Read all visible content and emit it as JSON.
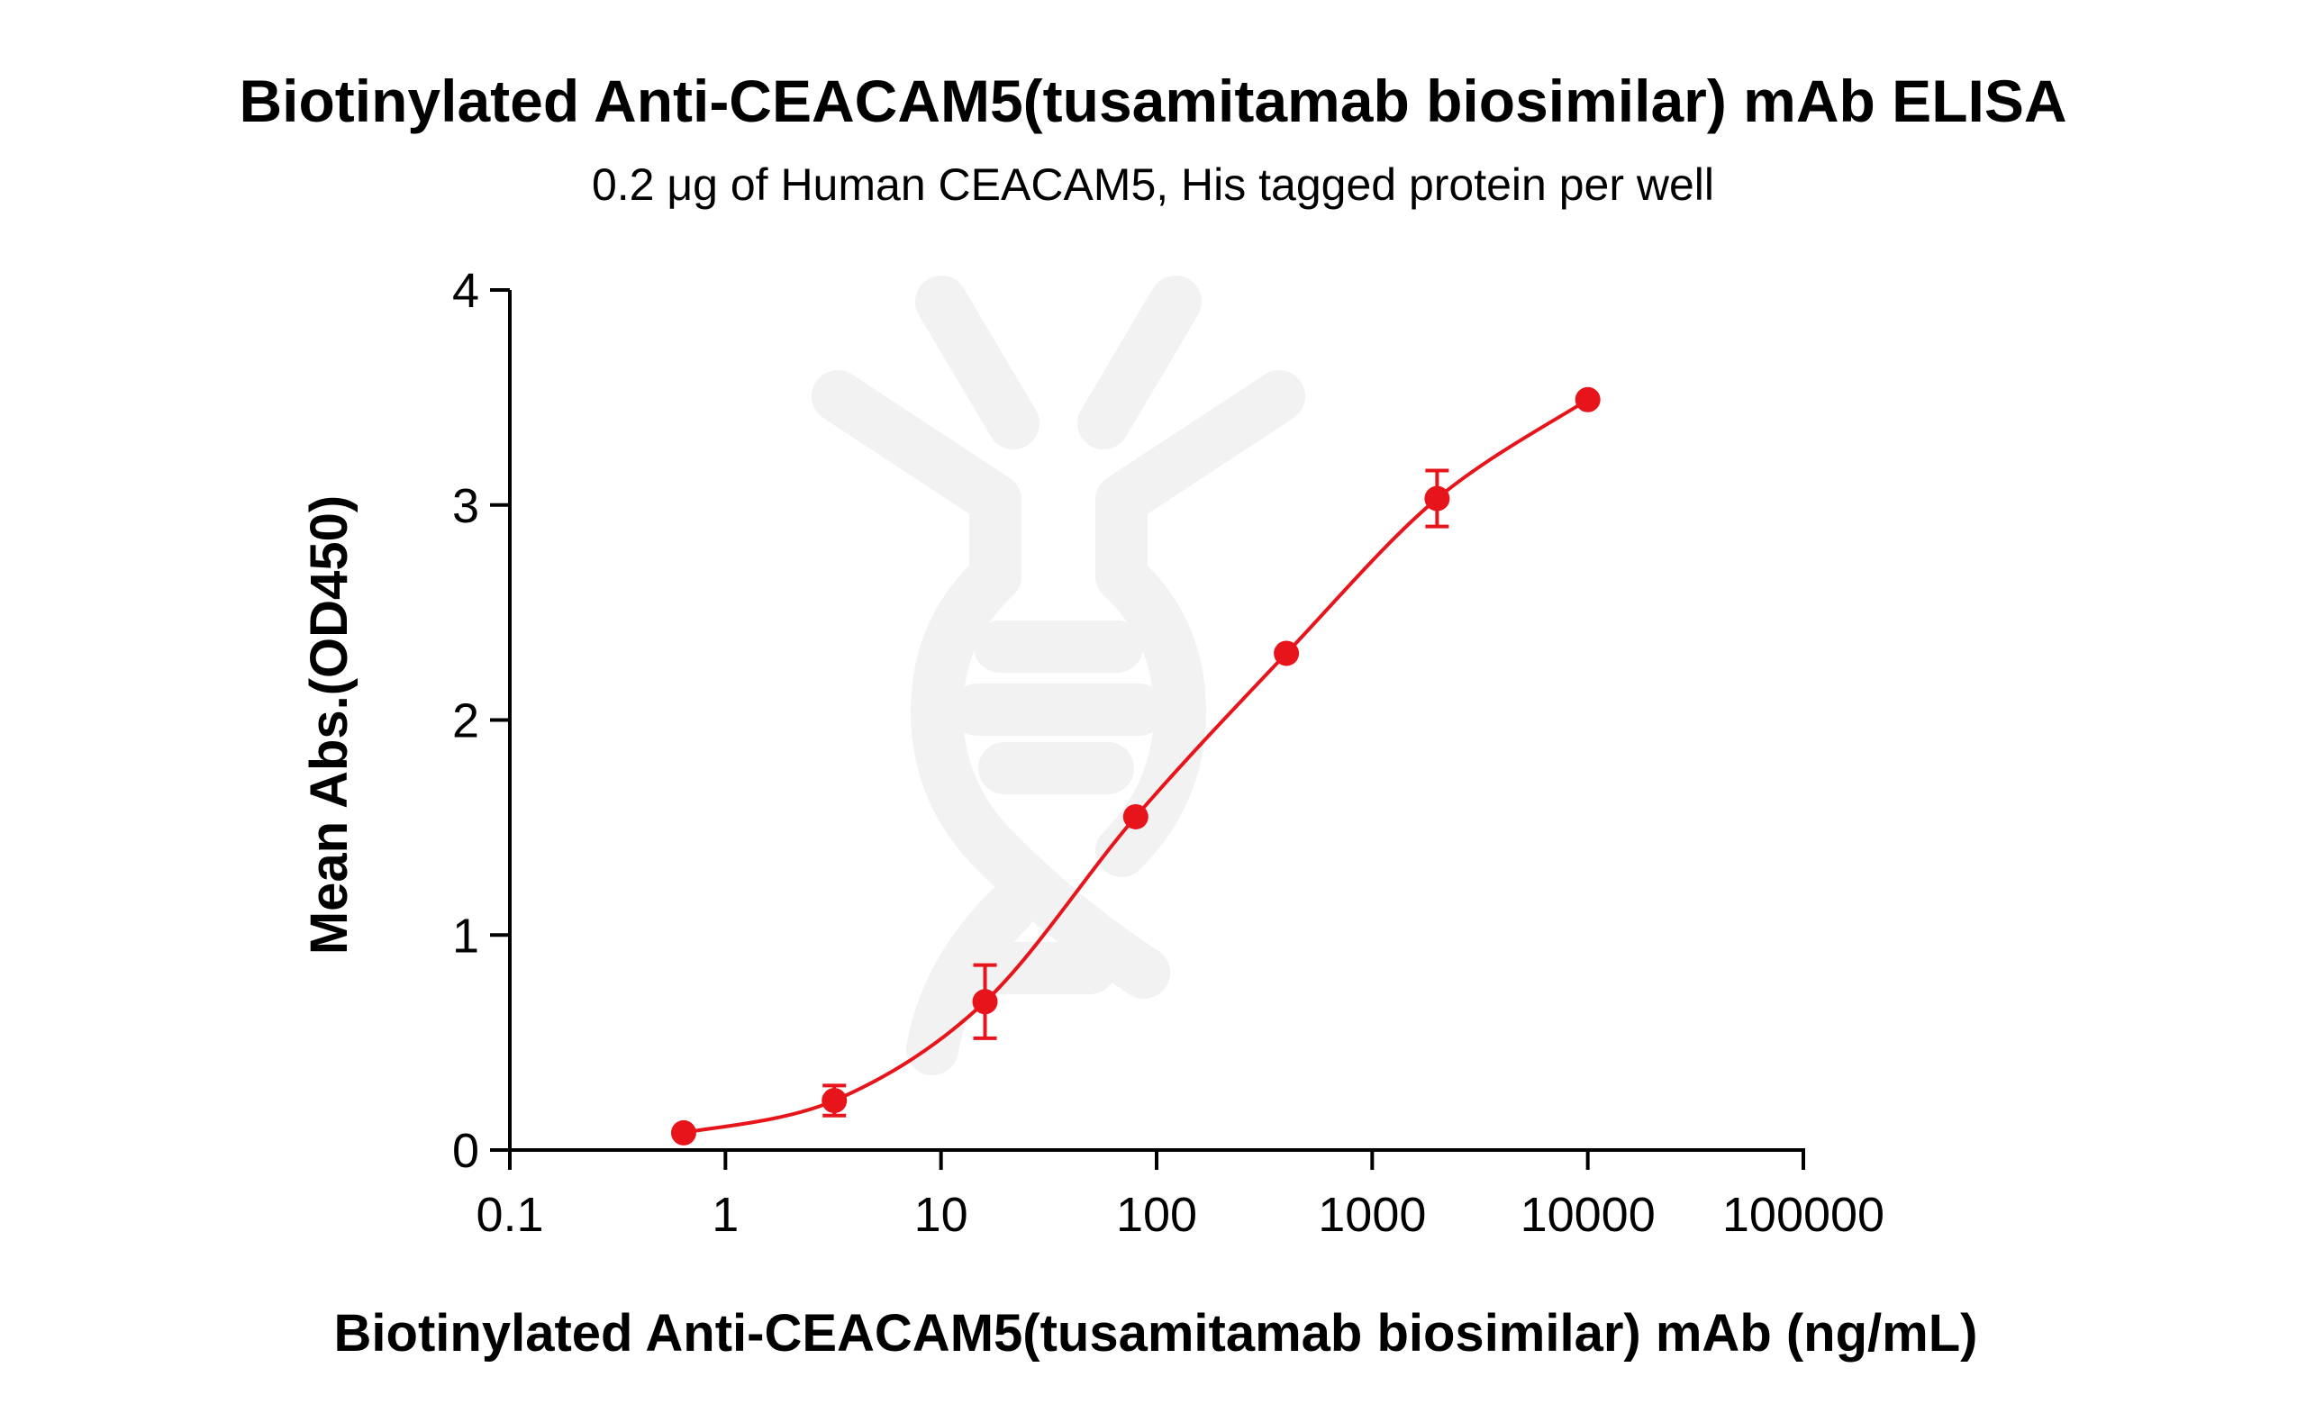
{
  "chart_data": {
    "type": "scatter",
    "title": "Biotinylated Anti-CEACAM5(tusamitamab biosimilar) mAb ELISA",
    "subtitle": "0.2 μg of Human CEACAM5, His tagged protein per well",
    "xlabel": "Biotinylated Anti-CEACAM5(tusamitamab biosimilar) mAb (ng/mL)",
    "ylabel": "Mean Abs.(OD450)",
    "xscale": "log",
    "xlim": [
      0.1,
      100000
    ],
    "ylim": [
      0,
      4
    ],
    "xticks": [
      "0.1",
      "1",
      "10",
      "100",
      "1000",
      "10000",
      "100000"
    ],
    "yticks": [
      "0",
      "1",
      "2",
      "3",
      "4"
    ],
    "grid": false,
    "color": "#e8141c",
    "fit_curve": "sigmoidal",
    "watermark": "dna-logo",
    "series": [
      {
        "x": [
          0.64,
          3.2,
          16,
          80,
          400,
          2000,
          10000
        ],
        "y": [
          0.08,
          0.23,
          0.69,
          1.55,
          2.31,
          3.03,
          3.49
        ],
        "error": [
          0.01,
          0.07,
          0.17,
          0.02,
          0.02,
          0.13,
          0.01
        ]
      }
    ]
  }
}
